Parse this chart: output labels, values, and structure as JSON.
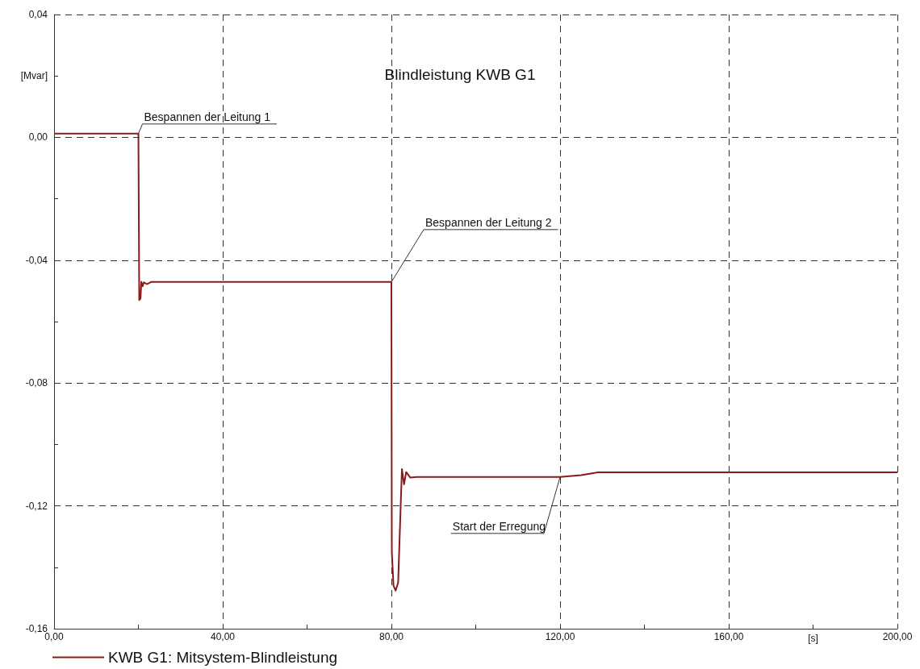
{
  "chart_data": {
    "type": "line",
    "title": "Blindleistung KWB G1",
    "xlabel": "[s]",
    "ylabel": "[Mvar]",
    "xlim": [
      0,
      200
    ],
    "ylim": [
      -0.16,
      0.04
    ],
    "xticks": [
      {
        "value": 0,
        "label": "0,00"
      },
      {
        "value": 20,
        "label": null
      },
      {
        "value": 40,
        "label": "40,00"
      },
      {
        "value": 60,
        "label": null
      },
      {
        "value": 80,
        "label": "80,00"
      },
      {
        "value": 100,
        "label": null
      },
      {
        "value": 120,
        "label": "120,00"
      },
      {
        "value": 140,
        "label": null
      },
      {
        "value": 160,
        "label": "160,00"
      },
      {
        "value": 180,
        "label": null
      },
      {
        "value": 200,
        "label": "200,00"
      }
    ],
    "yticks": [
      {
        "value": -0.16,
        "label": "-0,16"
      },
      {
        "value": -0.14,
        "label": null
      },
      {
        "value": -0.12,
        "label": "-0,12"
      },
      {
        "value": -0.1,
        "label": null
      },
      {
        "value": -0.08,
        "label": "-0,08"
      },
      {
        "value": -0.06,
        "label": null
      },
      {
        "value": -0.04,
        "label": "-0,04"
      },
      {
        "value": -0.02,
        "label": null
      },
      {
        "value": 0,
        "label": "0,00"
      },
      {
        "value": 0.02,
        "label": null
      },
      {
        "value": 0.04,
        "label": "0,04"
      }
    ],
    "grid": true,
    "legend": "bottom left",
    "marker": "none",
    "line_style": "solid",
    "annotations": [
      {
        "text": "Bespannen der Leitung 1",
        "x": 20,
        "y": 0.0012
      },
      {
        "text": "Bespannen der Leitung 2",
        "x": 80,
        "y": -0.0471
      },
      {
        "text": "Start der Erregung",
        "x": 120,
        "y": -0.1106
      }
    ],
    "series": [
      {
        "name": "KWB G1: Mitsystem-Blindleistung",
        "color": "#8b1a1a",
        "x": [
          0,
          20,
          20.2,
          20.5,
          20.7,
          21,
          21.3,
          22,
          23,
          80,
          80.1,
          80.5,
          81,
          81.6,
          82.2,
          82.5,
          83,
          83.5,
          84.5,
          86,
          120,
          125,
          129,
          200
        ],
        "values": [
          0.0012,
          0.0012,
          -0.053,
          -0.0525,
          -0.047,
          -0.0485,
          -0.0472,
          -0.0478,
          -0.0471,
          -0.0471,
          -0.135,
          -0.146,
          -0.1476,
          -0.145,
          -0.12,
          -0.108,
          -0.113,
          -0.109,
          -0.1108,
          -0.1106,
          -0.1106,
          -0.11,
          -0.1091,
          -0.1091
        ]
      }
    ]
  }
}
